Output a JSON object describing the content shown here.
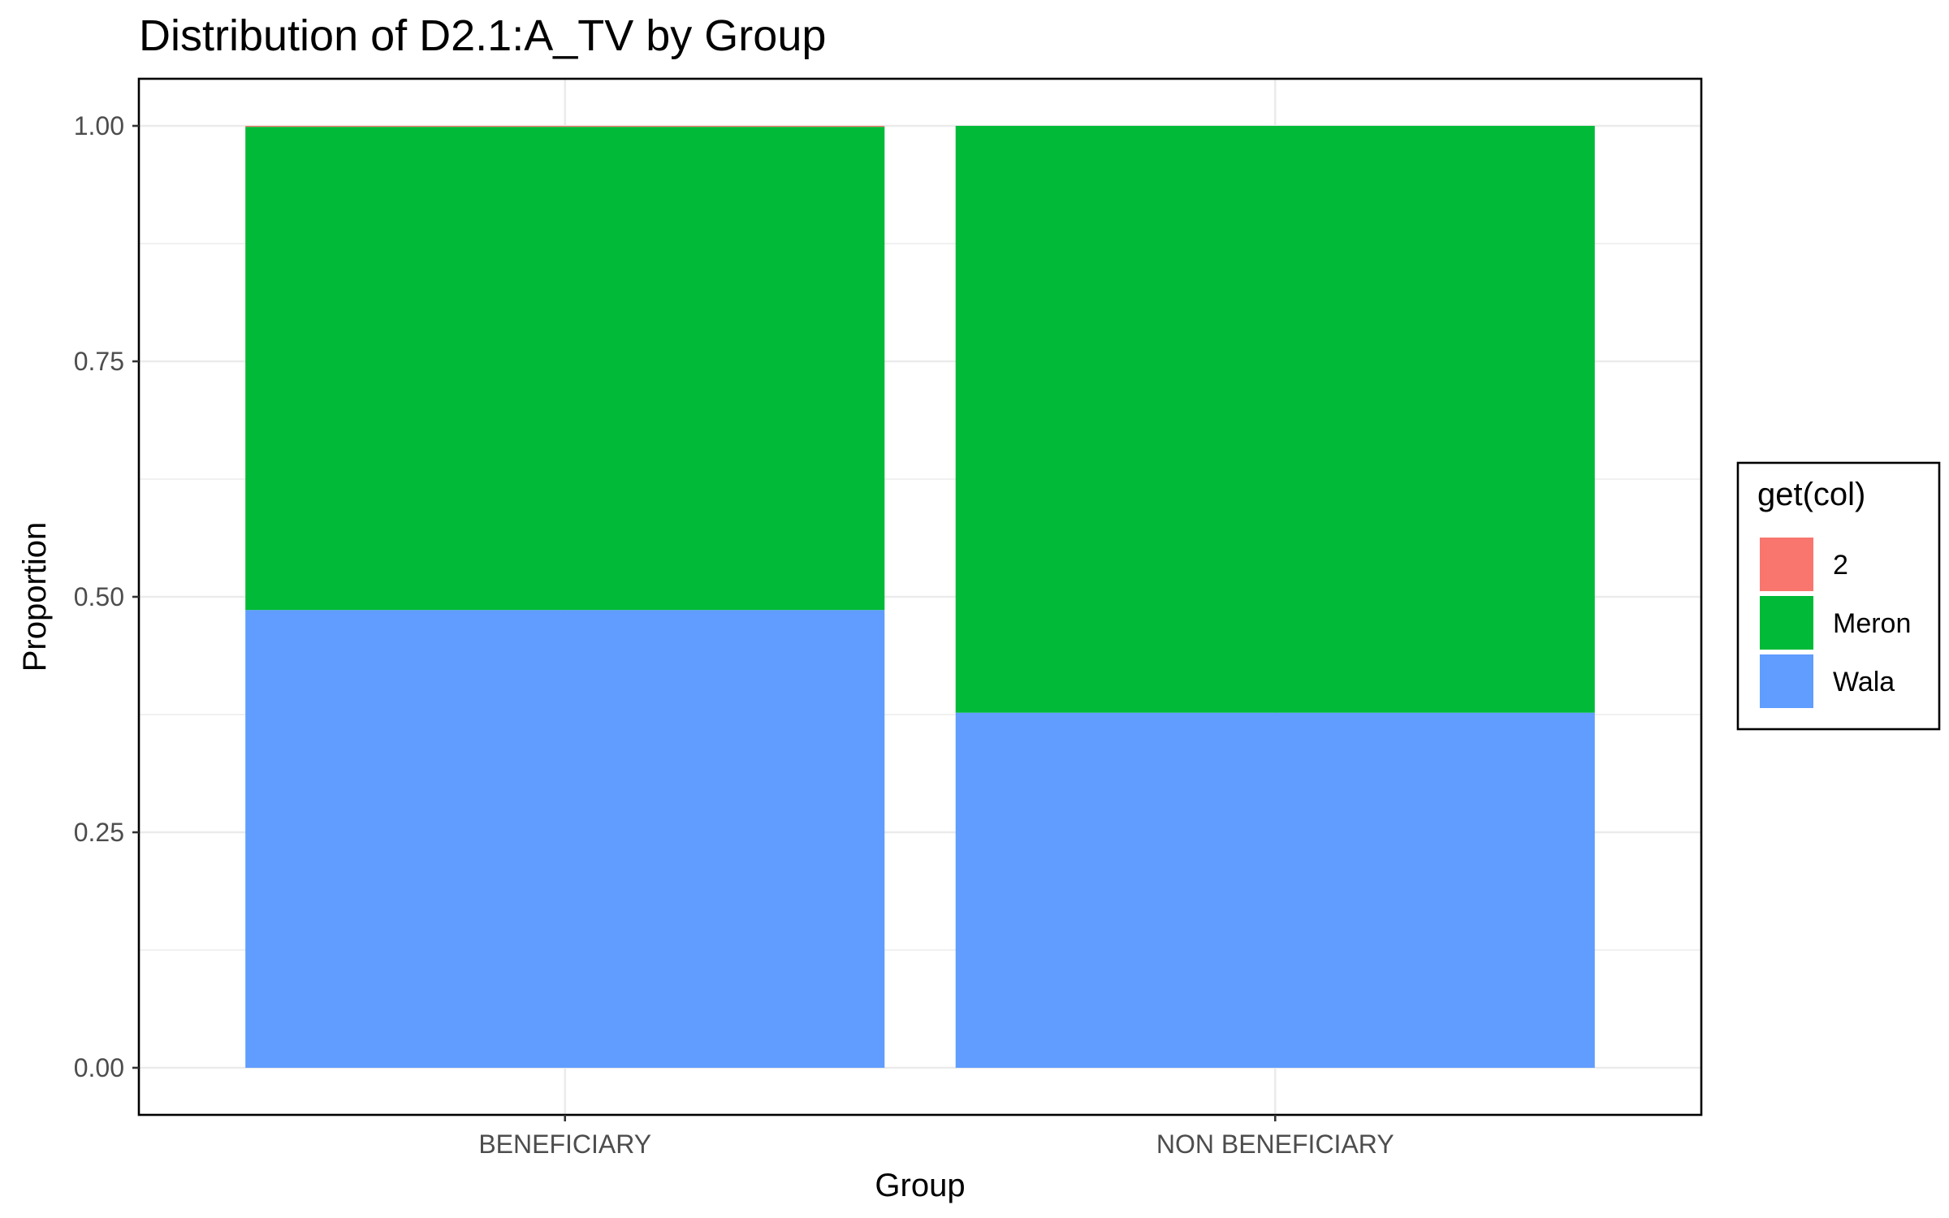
{
  "chart_data": {
    "type": "bar",
    "stacked": true,
    "title": "Distribution of D2.1:A_TV by Group",
    "xlabel": "Group",
    "ylabel": "Proportion",
    "categories": [
      "BENEFICIARY",
      "NON BENEFICIARY"
    ],
    "series": [
      {
        "name": "Wala",
        "values": [
          0.486,
          0.377
        ],
        "color": "#619CFF"
      },
      {
        "name": "Meron",
        "values": [
          0.513,
          0.623
        ],
        "color": "#00BA38"
      },
      {
        "name": "2",
        "values": [
          0.001,
          0.0
        ],
        "color": "#F8766D"
      }
    ],
    "ylim": [
      0,
      1
    ],
    "yticks": [
      0,
      0.25,
      0.5,
      0.75,
      1
    ],
    "ytick_labels": [
      "0.00",
      "0.25",
      "0.50",
      "0.75",
      "1.00"
    ],
    "grid": true,
    "legend": {
      "title": "get(col)",
      "position": "right",
      "entries": [
        "2",
        "Meron",
        "Wala"
      ]
    }
  }
}
